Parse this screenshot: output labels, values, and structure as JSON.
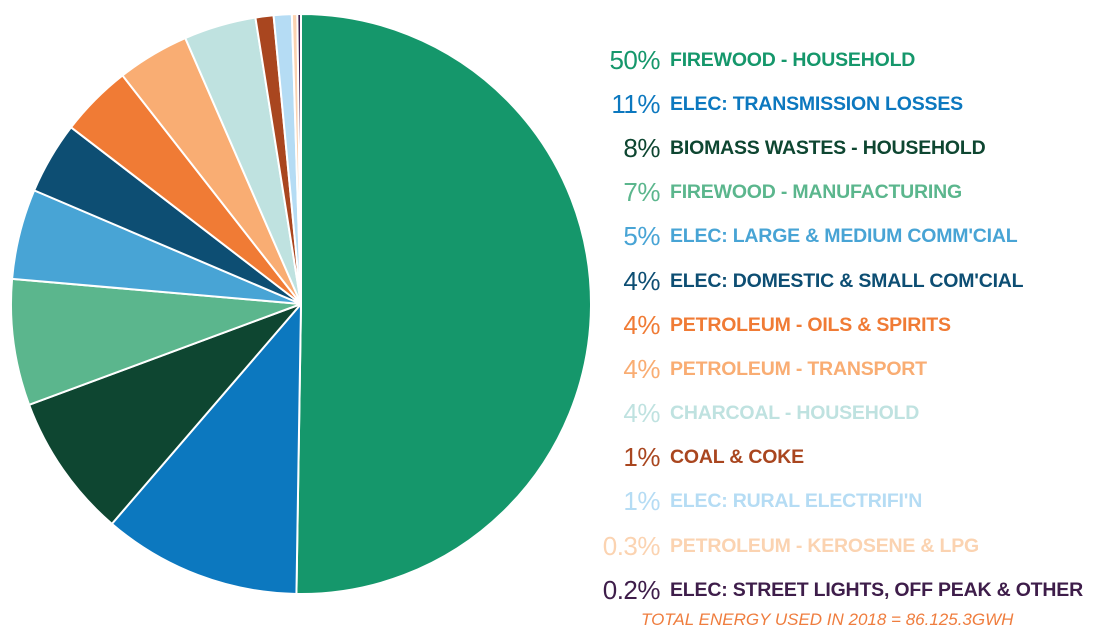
{
  "chart_data": {
    "type": "pie",
    "slices": [
      {
        "pct_label": "50%",
        "label": "FIREWOOD - HOUSEHOLD",
        "value": 50,
        "color": "#15976b"
      },
      {
        "pct_label": "11%",
        "label": "ELEC: TRANSMISSION LOSSES",
        "value": 11,
        "color": "#0c78bf"
      },
      {
        "pct_label": "8%",
        "label": "BIOMASS WASTES - HOUSEHOLD",
        "value": 8,
        "color": "#0e4631"
      },
      {
        "pct_label": "7%",
        "label": "FIREWOOD - MANUFACTURING",
        "value": 7,
        "color": "#5bb68d"
      },
      {
        "pct_label": "5%",
        "label": "ELEC: LARGE & MEDIUM COMM'CIAL",
        "value": 5,
        "color": "#48a4d5"
      },
      {
        "pct_label": "4%",
        "label": "ELEC: DOMESTIC & SMALL COM'CIAL",
        "value": 4,
        "color": "#0d4e73"
      },
      {
        "pct_label": "4%",
        "label": "PETROLEUM - OILS & SPIRITS",
        "value": 4,
        "color": "#f07b35"
      },
      {
        "pct_label": "4%",
        "label": "PETROLEUM - TRANSPORT",
        "value": 4,
        "color": "#f9ad73"
      },
      {
        "pct_label": "4%",
        "label": "CHARCOAL - HOUSEHOLD",
        "value": 4,
        "color": "#bfe2e0"
      },
      {
        "pct_label": "1%",
        "label": "COAL & COKE",
        "value": 1,
        "color": "#a9461f"
      },
      {
        "pct_label": "1%",
        "label": "ELEC: RURAL ELECTRIFI'N",
        "value": 1,
        "color": "#b5dcf4"
      },
      {
        "pct_label": "0.3%",
        "label": "PETROLEUM - KEROSENE & LPG",
        "value": 0.3,
        "color": "#fbd3b1"
      },
      {
        "pct_label": "0.2%",
        "label": "ELEC: STREET LIGHTS, OFF PEAK & OTHER",
        "value": 0.2,
        "color": "#3e1d4a"
      }
    ],
    "label_colors": [
      "#15976b",
      "#0c78bf",
      "#0e4631",
      "#5bb68d",
      "#48a4d5",
      "#0d4e73",
      "#f07b35",
      "#f9ad73",
      "#bfe2e0",
      "#a9461f",
      "#b5dcf4",
      "#fbd3b1",
      "#3e1d4a"
    ],
    "total": "TOTAL ENERGY USED IN 2018 = 86.125.3GWH"
  }
}
